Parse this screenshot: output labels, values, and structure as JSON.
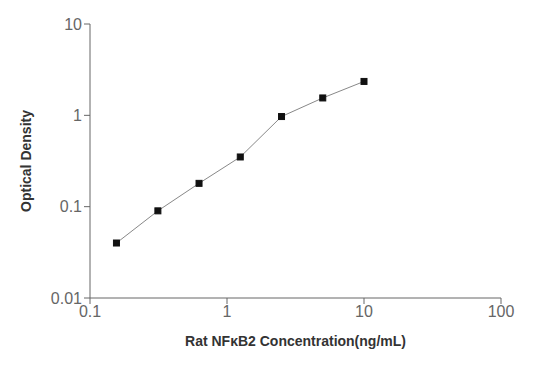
{
  "chart_data": {
    "type": "line",
    "x": [
      0.156,
      0.313,
      0.625,
      1.25,
      2.5,
      5.0,
      10.0
    ],
    "values": [
      0.04,
      0.09,
      0.18,
      0.35,
      0.97,
      1.55,
      2.35
    ],
    "xlabel": "Rat NFκB2 Concentration(ng/mL)",
    "ylabel": "Optical Density",
    "xlim": [
      0.1,
      100
    ],
    "ylim": [
      0.01,
      10
    ],
    "xticks": [
      0.1,
      1,
      10,
      100
    ],
    "yticks": [
      0.01,
      0.1,
      1,
      10
    ],
    "log": true,
    "grid": false,
    "color": "#888888",
    "colors": [
      "#111111",
      "#111111",
      "#111111",
      "#111111",
      "#111111",
      "#111111",
      "#111111"
    ],
    "marker": "square"
  }
}
